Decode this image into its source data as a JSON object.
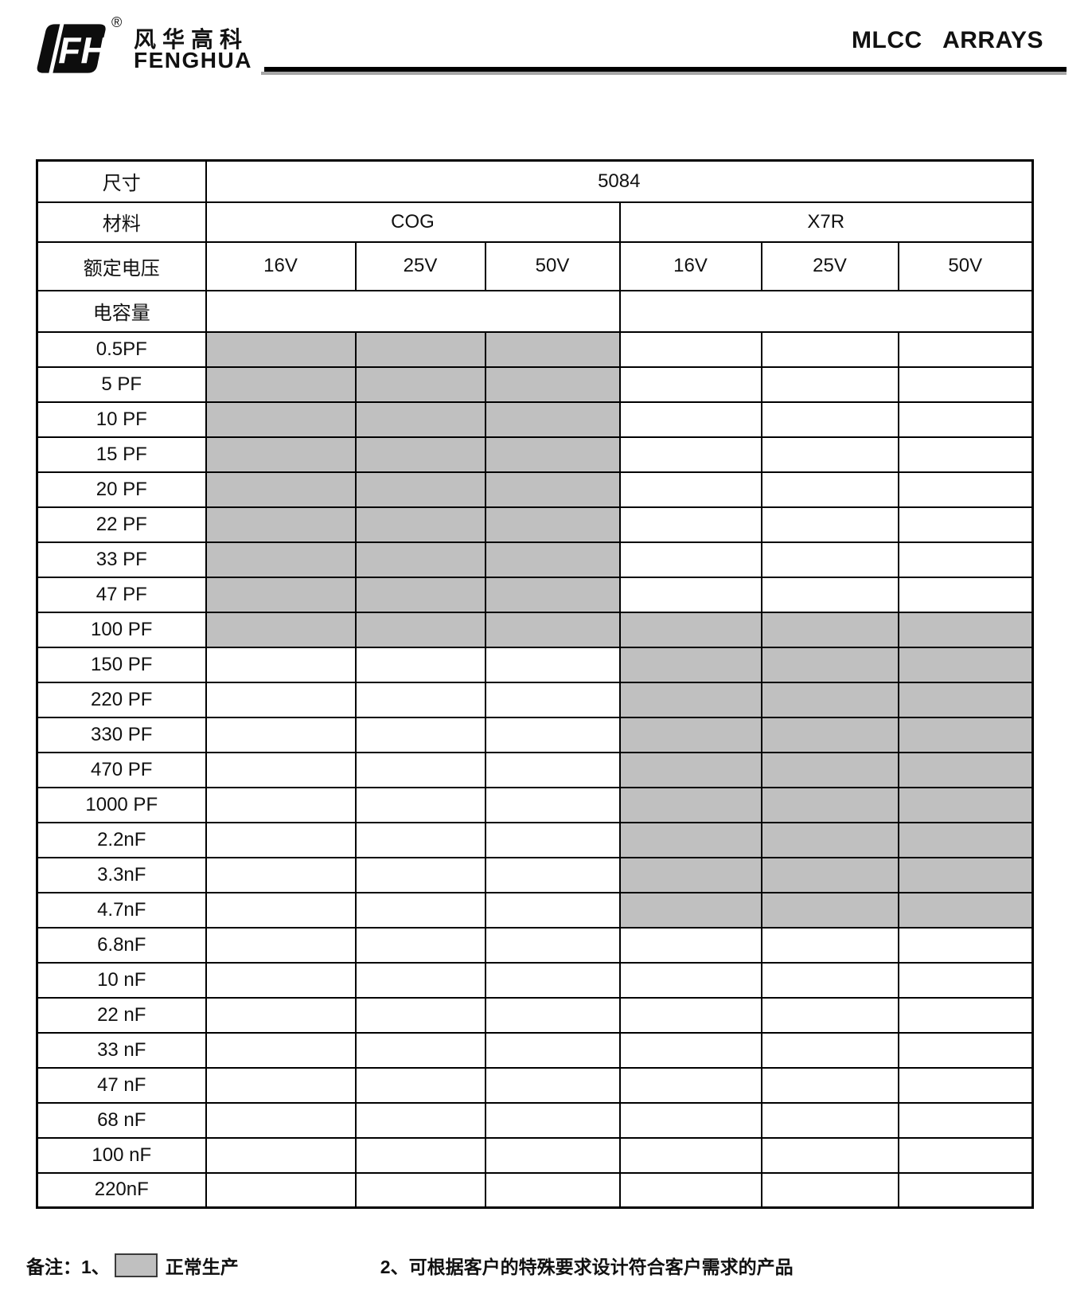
{
  "header": {
    "brand_cn": "风华高科",
    "brand_en": "FENGHUA",
    "registered_mark": "®",
    "doc_title": "MLCC   ARRAYS"
  },
  "table": {
    "labels": {
      "size": "尺寸",
      "material": "材料",
      "voltage": "额定电压",
      "capacitance": "电容量"
    },
    "size_value": "5084",
    "materials": [
      {
        "name": "COG",
        "voltages": [
          "16V",
          "25V",
          "50V"
        ]
      },
      {
        "name": "X7R",
        "voltages": [
          "16V",
          "25V",
          "50V"
        ]
      }
    ],
    "rows": [
      {
        "label": "0.5PF",
        "cog": [
          true,
          true,
          true
        ],
        "x7r": [
          false,
          false,
          false
        ]
      },
      {
        "label": "5 PF",
        "cog": [
          true,
          true,
          true
        ],
        "x7r": [
          false,
          false,
          false
        ]
      },
      {
        "label": "10 PF",
        "cog": [
          true,
          true,
          true
        ],
        "x7r": [
          false,
          false,
          false
        ]
      },
      {
        "label": "15 PF",
        "cog": [
          true,
          true,
          true
        ],
        "x7r": [
          false,
          false,
          false
        ]
      },
      {
        "label": "20 PF",
        "cog": [
          true,
          true,
          true
        ],
        "x7r": [
          false,
          false,
          false
        ]
      },
      {
        "label": "22 PF",
        "cog": [
          true,
          true,
          true
        ],
        "x7r": [
          false,
          false,
          false
        ]
      },
      {
        "label": "33 PF",
        "cog": [
          true,
          true,
          true
        ],
        "x7r": [
          false,
          false,
          false
        ]
      },
      {
        "label": "47 PF",
        "cog": [
          true,
          true,
          true
        ],
        "x7r": [
          false,
          false,
          false
        ]
      },
      {
        "label": "100 PF",
        "cog": [
          true,
          true,
          true
        ],
        "x7r": [
          true,
          true,
          true
        ]
      },
      {
        "label": "150 PF",
        "cog": [
          false,
          false,
          false
        ],
        "x7r": [
          true,
          true,
          true
        ]
      },
      {
        "label": "220 PF",
        "cog": [
          false,
          false,
          false
        ],
        "x7r": [
          true,
          true,
          true
        ]
      },
      {
        "label": "330 PF",
        "cog": [
          false,
          false,
          false
        ],
        "x7r": [
          true,
          true,
          true
        ]
      },
      {
        "label": "470 PF",
        "cog": [
          false,
          false,
          false
        ],
        "x7r": [
          true,
          true,
          true
        ]
      },
      {
        "label": "1000 PF",
        "cog": [
          false,
          false,
          false
        ],
        "x7r": [
          true,
          true,
          true
        ]
      },
      {
        "label": "2.2nF",
        "cog": [
          false,
          false,
          false
        ],
        "x7r": [
          true,
          true,
          true
        ]
      },
      {
        "label": "3.3nF",
        "cog": [
          false,
          false,
          false
        ],
        "x7r": [
          true,
          true,
          true
        ]
      },
      {
        "label": "4.7nF",
        "cog": [
          false,
          false,
          false
        ],
        "x7r": [
          true,
          true,
          true
        ]
      },
      {
        "label": "6.8nF",
        "cog": [
          false,
          false,
          false
        ],
        "x7r": [
          false,
          false,
          false
        ]
      },
      {
        "label": "10 nF",
        "cog": [
          false,
          false,
          false
        ],
        "x7r": [
          false,
          false,
          false
        ]
      },
      {
        "label": "22 nF",
        "cog": [
          false,
          false,
          false
        ],
        "x7r": [
          false,
          false,
          false
        ]
      },
      {
        "label": "33 nF",
        "cog": [
          false,
          false,
          false
        ],
        "x7r": [
          false,
          false,
          false
        ]
      },
      {
        "label": "47 nF",
        "cog": [
          false,
          false,
          false
        ],
        "x7r": [
          false,
          false,
          false
        ]
      },
      {
        "label": "68 nF",
        "cog": [
          false,
          false,
          false
        ],
        "x7r": [
          false,
          false,
          false
        ]
      },
      {
        "label": "100 nF",
        "cog": [
          false,
          false,
          false
        ],
        "x7r": [
          false,
          false,
          false
        ]
      },
      {
        "label": "220nF",
        "cog": [
          false,
          false,
          false
        ],
        "x7r": [
          false,
          false,
          false
        ]
      }
    ]
  },
  "footnote": {
    "prefix": "备注：1、",
    "legend_label": "正常生产",
    "note2": "2、可根据客户的特殊要求设计符合客户需求的产品"
  },
  "colors": {
    "available_fill": "#c0c0c0",
    "border": "#000000"
  }
}
